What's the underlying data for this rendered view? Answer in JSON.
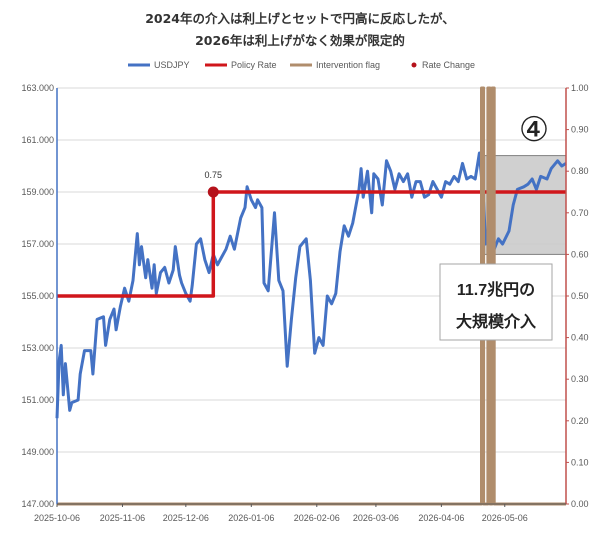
{
  "chart_data": {
    "type": "line",
    "title_line1": "2024年の介入は利上げとセットで円高に反応したが、",
    "title_line2": "2026年は利上げがなく効果が限定的",
    "legend": [
      {
        "name": "USDJPY",
        "color": "#4472c4",
        "kind": "line"
      },
      {
        "name": "Policy Rate",
        "color": "#d0161b",
        "kind": "line"
      },
      {
        "name": "Intervention flag",
        "color": "#b08d6c",
        "kind": "line"
      },
      {
        "name": "Rate Change",
        "color": "#b5121b",
        "kind": "dot"
      }
    ],
    "x_tick_labels": [
      "2025-10-06",
      "2025-11-06",
      "2025-12-06",
      "2026-01-06",
      "2026-02-06",
      "2026-03-06",
      "2026-04-06",
      "2026-05-06"
    ],
    "x_range": [
      "2025-10-06",
      "2026-06-04"
    ],
    "y_left": {
      "min": 147,
      "max": 163,
      "ticks": [
        "147.000",
        "149.000",
        "151.000",
        "153.000",
        "155.000",
        "157.000",
        "159.000",
        "161.000",
        "163.000"
      ]
    },
    "y_right": {
      "min": 0,
      "max": 1,
      "ticks": [
        "0.00",
        "0.10",
        "0.20",
        "0.30",
        "0.40",
        "0.50",
        "0.60",
        "0.70",
        "0.80",
        "0.90",
        "1.00"
      ]
    },
    "series": [
      {
        "name": "USDJPY",
        "axis": "left",
        "color": "#4472c4",
        "points": [
          [
            "2025-10-06",
            150.3
          ],
          [
            "2025-10-07",
            152.5
          ],
          [
            "2025-10-08",
            153.1
          ],
          [
            "2025-10-09",
            151.2
          ],
          [
            "2025-10-10",
            152.4
          ],
          [
            "2025-10-12",
            150.6
          ],
          [
            "2025-10-13",
            150.9
          ],
          [
            "2025-10-16",
            151.0
          ],
          [
            "2025-10-17",
            152.0
          ],
          [
            "2025-10-19",
            152.9
          ],
          [
            "2025-10-22",
            152.9
          ],
          [
            "2025-10-23",
            152.0
          ],
          [
            "2025-10-25",
            154.1
          ],
          [
            "2025-10-28",
            154.2
          ],
          [
            "2025-10-29",
            153.1
          ],
          [
            "2025-10-31",
            154.1
          ],
          [
            "2025-11-02",
            154.5
          ],
          [
            "2025-11-03",
            153.7
          ],
          [
            "2025-11-05",
            154.6
          ],
          [
            "2025-11-07",
            155.3
          ],
          [
            "2025-11-09",
            154.8
          ],
          [
            "2025-11-11",
            155.6
          ],
          [
            "2025-11-13",
            157.4
          ],
          [
            "2025-11-14",
            156.2
          ],
          [
            "2025-11-15",
            156.9
          ],
          [
            "2025-11-17",
            155.7
          ],
          [
            "2025-11-18",
            156.4
          ],
          [
            "2025-11-20",
            155.3
          ],
          [
            "2025-11-21",
            156.2
          ],
          [
            "2025-11-22",
            155.1
          ],
          [
            "2025-11-24",
            155.9
          ],
          [
            "2025-11-26",
            156.1
          ],
          [
            "2025-11-28",
            155.5
          ],
          [
            "2025-11-30",
            156.0
          ],
          [
            "2025-12-01",
            156.9
          ],
          [
            "2025-12-03",
            155.8
          ],
          [
            "2025-12-04",
            155.5
          ],
          [
            "2025-12-06",
            155.1
          ],
          [
            "2025-12-08",
            154.8
          ],
          [
            "2025-12-09",
            155.4
          ],
          [
            "2025-12-11",
            157.0
          ],
          [
            "2025-12-13",
            157.2
          ],
          [
            "2025-12-15",
            156.4
          ],
          [
            "2025-12-17",
            155.9
          ],
          [
            "2025-12-19",
            156.6
          ],
          [
            "2025-12-21",
            156.2
          ],
          [
            "2025-12-23",
            156.5
          ],
          [
            "2025-12-25",
            156.8
          ],
          [
            "2025-12-27",
            157.3
          ],
          [
            "2025-12-29",
            156.8
          ],
          [
            "2026-01-01",
            158.0
          ],
          [
            "2026-01-03",
            158.4
          ],
          [
            "2026-01-04",
            159.2
          ],
          [
            "2026-01-06",
            158.7
          ],
          [
            "2026-01-08",
            158.4
          ],
          [
            "2026-01-09",
            158.7
          ],
          [
            "2026-01-11",
            158.4
          ],
          [
            "2026-01-12",
            155.5
          ],
          [
            "2026-01-14",
            155.2
          ],
          [
            "2026-01-17",
            158.2
          ],
          [
            "2026-01-19",
            155.6
          ],
          [
            "2026-01-21",
            155.2
          ],
          [
            "2026-01-23",
            152.3
          ],
          [
            "2026-01-25",
            154.1
          ],
          [
            "2026-01-27",
            155.7
          ],
          [
            "2026-01-29",
            156.9
          ],
          [
            "2026-02-01",
            157.2
          ],
          [
            "2026-02-03",
            155.6
          ],
          [
            "2026-02-05",
            152.8
          ],
          [
            "2026-02-07",
            153.4
          ],
          [
            "2026-02-09",
            153.1
          ],
          [
            "2026-02-11",
            155.0
          ],
          [
            "2026-02-13",
            154.7
          ],
          [
            "2026-02-15",
            155.1
          ],
          [
            "2026-02-17",
            156.7
          ],
          [
            "2026-02-19",
            157.7
          ],
          [
            "2026-02-21",
            157.3
          ],
          [
            "2026-02-23",
            157.8
          ],
          [
            "2026-02-26",
            159.1
          ],
          [
            "2026-02-27",
            159.9
          ],
          [
            "2026-02-28",
            158.8
          ],
          [
            "2026-03-02",
            159.8
          ],
          [
            "2026-03-04",
            158.2
          ],
          [
            "2026-03-05",
            159.7
          ],
          [
            "2026-03-07",
            159.5
          ],
          [
            "2026-03-09",
            158.5
          ],
          [
            "2026-03-11",
            160.2
          ],
          [
            "2026-03-13",
            159.8
          ],
          [
            "2026-03-15",
            159.1
          ],
          [
            "2026-03-17",
            159.7
          ],
          [
            "2026-03-19",
            159.4
          ],
          [
            "2026-03-21",
            159.7
          ],
          [
            "2026-03-23",
            158.8
          ],
          [
            "2026-03-25",
            159.4
          ],
          [
            "2026-03-27",
            159.4
          ],
          [
            "2026-03-29",
            158.8
          ],
          [
            "2026-03-31",
            158.9
          ],
          [
            "2026-04-02",
            159.4
          ],
          [
            "2026-04-04",
            159.1
          ],
          [
            "2026-04-06",
            158.8
          ],
          [
            "2026-04-08",
            159.4
          ],
          [
            "2026-04-10",
            159.3
          ],
          [
            "2026-04-12",
            159.6
          ],
          [
            "2026-04-14",
            159.4
          ],
          [
            "2026-04-16",
            160.1
          ],
          [
            "2026-04-18",
            159.5
          ],
          [
            "2026-04-20",
            159.6
          ],
          [
            "2026-04-22",
            159.5
          ],
          [
            "2026-04-24",
            160.5
          ],
          [
            "2026-04-26",
            158.6
          ],
          [
            "2026-04-27",
            157.0
          ],
          [
            "2026-04-29",
            157.3
          ],
          [
            "2026-05-01",
            156.8
          ],
          [
            "2026-05-03",
            157.2
          ],
          [
            "2026-05-05",
            157.0
          ],
          [
            "2026-05-08",
            157.5
          ],
          [
            "2026-05-10",
            158.5
          ],
          [
            "2026-05-12",
            159.1
          ],
          [
            "2026-05-15",
            159.2
          ],
          [
            "2026-05-17",
            159.3
          ],
          [
            "2026-05-19",
            159.5
          ],
          [
            "2026-05-21",
            159.1
          ],
          [
            "2026-05-23",
            159.6
          ],
          [
            "2026-05-26",
            159.5
          ],
          [
            "2026-05-28",
            159.9
          ],
          [
            "2026-05-31",
            160.2
          ],
          [
            "2026-06-02",
            160.0
          ],
          [
            "2026-06-04",
            160.1
          ]
        ]
      },
      {
        "name": "Policy Rate",
        "axis": "right",
        "color": "#d0161b",
        "points": [
          [
            "2025-10-06",
            0.5
          ],
          [
            "2025-12-19",
            0.5
          ],
          [
            "2025-12-19",
            0.75
          ],
          [
            "2026-06-04",
            0.75
          ]
        ]
      },
      {
        "name": "Intervention flag",
        "axis": "right",
        "color": "#b08d6c",
        "points": [
          [
            "2025-10-06",
            0
          ],
          [
            "2026-04-25",
            0
          ],
          [
            "2026-04-25",
            1
          ],
          [
            "2026-04-26",
            1
          ],
          [
            "2026-04-26",
            0
          ],
          [
            "2026-04-28",
            0
          ],
          [
            "2026-04-28",
            1
          ],
          [
            "2026-04-29",
            1
          ],
          [
            "2026-04-29",
            0
          ],
          [
            "2026-04-30",
            0
          ],
          [
            "2026-04-30",
            1
          ],
          [
            "2026-05-01",
            1
          ],
          [
            "2026-05-01",
            0
          ],
          [
            "2026-06-04",
            0
          ]
        ]
      }
    ],
    "rate_change": {
      "date": "2025-12-19",
      "value": 0.75,
      "label": "0.75"
    },
    "highlight": {
      "x_start": "2026-04-26",
      "x_end": "2026-06-04",
      "y_start": 156.6,
      "y_end": 160.4
    },
    "annotation": {
      "marker": "④",
      "line1": "11.7兆円の",
      "line2": "大規模介入"
    }
  }
}
